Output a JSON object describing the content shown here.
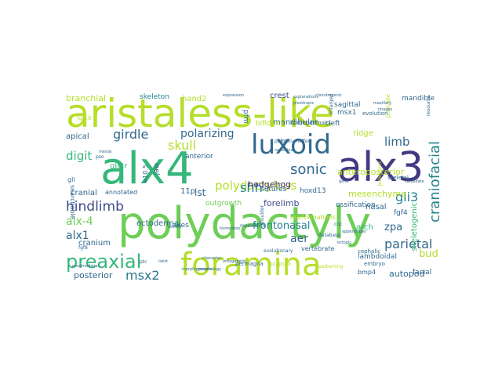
{
  "word_cloud": {
    "words": [
      {
        "text": "aristaless-like",
        "color": "#b5de2b"
      },
      {
        "text": "polydactyly",
        "color": "#6ece58"
      },
      {
        "text": "alx4",
        "color": "#35b779"
      },
      {
        "text": "alx3",
        "color": "#443983"
      },
      {
        "text": "foramina",
        "color": "#b5de2b"
      },
      {
        "text": "luxoid",
        "color": "#31688e"
      },
      {
        "text": "preaxial",
        "color": "#35b779"
      },
      {
        "text": "polydactylous",
        "color": "#b5de2b"
      },
      {
        "text": "craniofacial",
        "color": "#26828e"
      },
      {
        "text": "sonic",
        "color": "#31688e"
      },
      {
        "text": "hindlimb",
        "color": "#3e4989"
      },
      {
        "text": "frontonasal",
        "color": "#26828e"
      },
      {
        "text": "girdle",
        "color": "#31688e"
      },
      {
        "text": "parietal",
        "color": "#31688e"
      },
      {
        "text": "msx2",
        "color": "#2a788e"
      },
      {
        "text": "skull",
        "color": "#b5de2b"
      },
      {
        "text": "shh",
        "color": "#26828e"
      },
      {
        "text": "polarizing",
        "color": "#31688e"
      },
      {
        "text": "gli3",
        "color": "#26828e"
      },
      {
        "text": "limb",
        "color": "#31688e"
      },
      {
        "text": "digit",
        "color": "#35b779"
      },
      {
        "text": "alx1",
        "color": "#31688e"
      },
      {
        "text": "alx-4",
        "color": "#6ece58"
      },
      {
        "text": "aer",
        "color": "#31688e"
      },
      {
        "text": "zpa",
        "color": "#31688e"
      },
      {
        "text": "bud",
        "color": "#b5de2b"
      },
      {
        "text": "lst",
        "color": "#31688e"
      },
      {
        "text": "hedgehog",
        "color": "#472d7b"
      },
      {
        "text": "forelimb",
        "color": "#3e4989"
      },
      {
        "text": "posterior",
        "color": "#31688e"
      },
      {
        "text": "autopod",
        "color": "#31688e"
      },
      {
        "text": "mesenchyme",
        "color": "#b5de2b"
      },
      {
        "text": "anteroposterior",
        "color": "#b5de2b"
      },
      {
        "text": "crest",
        "color": "#3e4989"
      },
      {
        "text": "mandibular",
        "color": "#31688e"
      },
      {
        "text": "branchial",
        "color": "#b5de2b"
      },
      {
        "text": "skeleton",
        "color": "#26828e"
      },
      {
        "text": "hand2",
        "color": "#b5de2b"
      },
      {
        "text": "ectodermal",
        "color": "#31688e"
      },
      {
        "text": "cranium",
        "color": "#31688e"
      },
      {
        "text": "cranial",
        "color": "#31688e"
      },
      {
        "text": "apical",
        "color": "#31688e"
      },
      {
        "text": "arch",
        "color": "#35b779"
      },
      {
        "text": "nasal",
        "color": "#31688e"
      },
      {
        "text": "ridge",
        "color": "#b5de2b"
      },
      {
        "text": "cleft",
        "color": "#31688e"
      },
      {
        "text": "msx1",
        "color": "#31688e"
      },
      {
        "text": "sagittal",
        "color": "#31688e"
      },
      {
        "text": "mandible",
        "color": "#31688e"
      },
      {
        "text": "anterior",
        "color": "#31688e"
      },
      {
        "text": "bifidum",
        "color": "#b5de2b"
      },
      {
        "text": "homeodomain",
        "color": "#31688e"
      },
      {
        "text": "pfm",
        "color": "#31688e"
      },
      {
        "text": "gli3r",
        "color": "#35b779"
      },
      {
        "text": "11p",
        "color": "#31688e"
      },
      {
        "text": "outgrowth",
        "color": "#6ece58"
      },
      {
        "text": "sutures",
        "color": "#31688e"
      },
      {
        "text": "hoxd13",
        "color": "#31688e"
      },
      {
        "text": "ossification",
        "color": "#31688e"
      },
      {
        "text": "fgf4",
        "color": "#31688e"
      },
      {
        "text": "facial",
        "color": "#31688e"
      },
      {
        "text": "lambdoidal",
        "color": "#31688e"
      },
      {
        "text": "bmp4",
        "color": "#31688e"
      },
      {
        "text": "embryo",
        "color": "#31688e"
      },
      {
        "text": "axes",
        "color": "#31688e"
      },
      {
        "text": "vertebrate",
        "color": "#31688e"
      },
      {
        "text": "malformations",
        "color": "#b5de2b"
      },
      {
        "text": "database",
        "color": "#31688e"
      },
      {
        "text": "evolutionary",
        "color": "#31688e"
      },
      {
        "text": "annotated",
        "color": "#31688e"
      },
      {
        "text": "searchable",
        "color": "#31688e"
      },
      {
        "text": "evolution",
        "color": "#31688e"
      },
      {
        "text": "skeletogenic",
        "color": "#35b779"
      },
      {
        "text": "jaw",
        "color": "#31688e"
      },
      {
        "text": "e10.5",
        "color": "#31688e"
      },
      {
        "text": "mesoderm",
        "color": "#31688e"
      },
      {
        "text": "permagna",
        "color": "#31688e"
      },
      {
        "text": "patterning",
        "color": "#b5de2b"
      },
      {
        "text": "scapula",
        "color": "#b5de2b"
      },
      {
        "text": "cephalic",
        "color": "#31688e"
      },
      {
        "text": "fgf10",
        "color": "#b5de2b"
      },
      {
        "text": "enlarged",
        "color": "#31688e"
      },
      {
        "text": "shoulder",
        "color": "#31688e"
      },
      {
        "text": "cnc",
        "color": "#31688e"
      },
      {
        "text": "pubescent",
        "color": "#b5de2b"
      },
      {
        "text": "principle",
        "color": "#b5de2b"
      },
      {
        "text": "resource",
        "color": "#31688e"
      },
      {
        "text": "skeletal",
        "color": "#31688e"
      },
      {
        "text": "gli",
        "color": "#31688e"
      },
      {
        "text": "fgf8",
        "color": "#31688e"
      },
      {
        "text": "pso",
        "color": "#31688e"
      },
      {
        "text": "mesial",
        "color": "#31688e"
      },
      {
        "text": "ptc",
        "color": "#31688e"
      },
      {
        "text": "fgf",
        "color": "#31688e"
      },
      {
        "text": "explanations",
        "color": "#31688e"
      },
      {
        "text": "pleiotropic",
        "color": "#31688e"
      },
      {
        "text": "potocki-shaffer",
        "color": "#31688e"
      },
      {
        "text": "radioulna",
        "color": "#31688e"
      },
      {
        "text": "proximodistal",
        "color": "#31688e"
      },
      {
        "text": "morphogenesis",
        "color": "#31688e"
      },
      {
        "text": "ontogenetic",
        "color": "#31688e"
      },
      {
        "text": "character",
        "color": "#31688e"
      },
      {
        "text": "morphology",
        "color": "#31688e"
      },
      {
        "text": "dermal",
        "color": "#31688e"
      },
      {
        "text": "ectopic",
        "color": "#31688e"
      },
      {
        "text": "maxillary",
        "color": "#31688e"
      },
      {
        "text": "appendages",
        "color": "#31688e"
      },
      {
        "text": "chondrogenic",
        "color": "#31688e"
      },
      {
        "text": "homeobox",
        "color": "#31688e"
      },
      {
        "text": "gene",
        "color": "#31688e"
      },
      {
        "text": "twist",
        "color": "#31688e"
      },
      {
        "text": "expression",
        "color": "#31688e"
      },
      {
        "text": "candidate",
        "color": "#31688e"
      },
      {
        "text": "images",
        "color": "#31688e"
      }
    ]
  }
}
